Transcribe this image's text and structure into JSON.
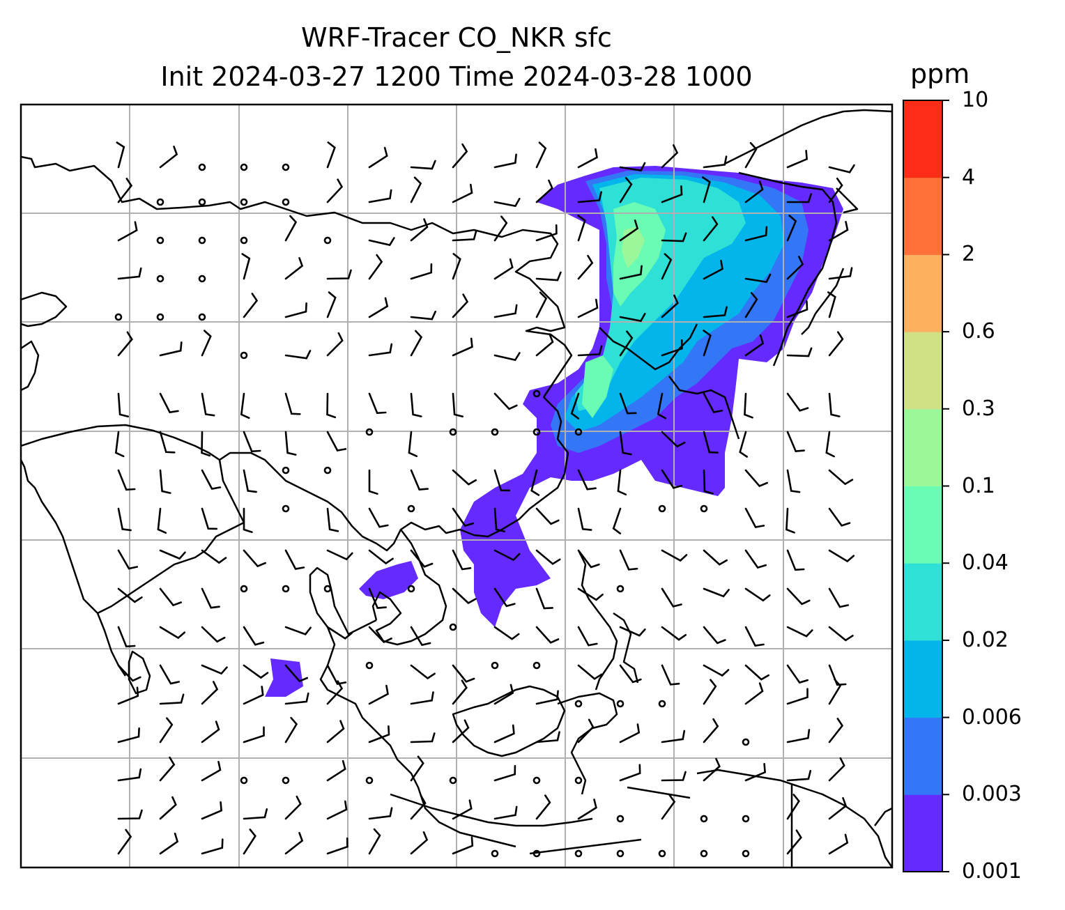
{
  "title": {
    "line1": "WRF-Tracer CO_NKR sfc",
    "line2": "Init 2024-03-27 1200 Time 2024-03-28 1000"
  },
  "colorbar": {
    "unit": "ppm",
    "levels": [
      "0.001",
      "0.003",
      "0.006",
      "0.02",
      "0.04",
      "0.1",
      "0.3",
      "0.6",
      "2",
      "4",
      "10"
    ],
    "colors": [
      "#652aff",
      "#3477f6",
      "#03b5ea",
      "#2ee0d6",
      "#6afbb4",
      "#9af89b",
      "#d0e084",
      "#fdb05f",
      "#fe7038",
      "#fc2c17"
    ]
  },
  "map": {
    "projection": "Mercator",
    "gridlines": true,
    "coastlines": true,
    "barbs": "wind barbs"
  }
}
